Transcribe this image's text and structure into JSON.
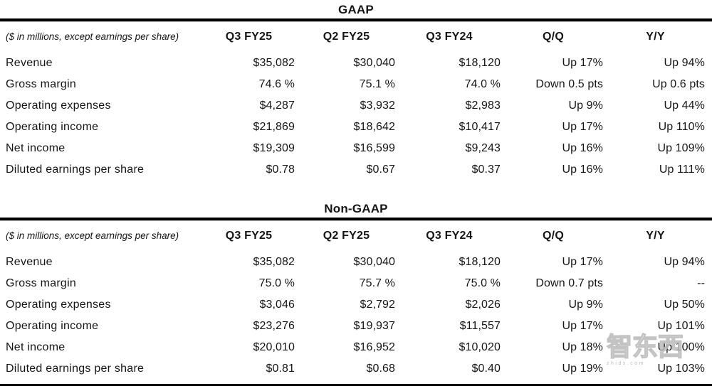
{
  "page": {
    "background": "#ffffff",
    "text_color": "#161616",
    "rule_color": "#000000"
  },
  "tables": [
    {
      "title": "GAAP",
      "note": "($ in millions, except earnings per share)",
      "columns": [
        "Q3 FY25",
        "Q2 FY25",
        "Q3 FY24",
        "Q/Q",
        "Y/Y"
      ],
      "rows": [
        {
          "label": "Revenue",
          "values": [
            "$35,082",
            "$30,040",
            "$18,120",
            "Up 17%",
            "Up 94%"
          ]
        },
        {
          "label": "Gross margin",
          "values": [
            "74.6 %",
            "75.1 %",
            "74.0 %",
            "Down 0.5 pts",
            "Up 0.6 pts"
          ]
        },
        {
          "label": "Operating expenses",
          "values": [
            "$4,287",
            "$3,932",
            "$2,983",
            "Up 9%",
            "Up 44%"
          ]
        },
        {
          "label": "Operating income",
          "values": [
            "$21,869",
            "$18,642",
            "$10,417",
            "Up 17%",
            "Up 110%"
          ]
        },
        {
          "label": "Net income",
          "values": [
            "$19,309",
            "$16,599",
            "$9,243",
            "Up 16%",
            "Up 109%"
          ]
        },
        {
          "label": "Diluted earnings per share",
          "values": [
            "$0.78",
            "$0.67",
            "$0.37",
            "Up 16%",
            "Up 111%"
          ]
        }
      ]
    },
    {
      "title": "Non-GAAP",
      "note": "($ in millions, except earnings per share)",
      "columns": [
        "Q3 FY25",
        "Q2 FY25",
        "Q3 FY24",
        "Q/Q",
        "Y/Y"
      ],
      "rows": [
        {
          "label": "Revenue",
          "values": [
            "$35,082",
            "$30,040",
            "$18,120",
            "Up 17%",
            "Up 94%"
          ]
        },
        {
          "label": "Gross margin",
          "values": [
            "75.0 %",
            "75.7 %",
            "75.0 %",
            "Down 0.7 pts",
            "--"
          ]
        },
        {
          "label": "Operating expenses",
          "values": [
            "$3,046",
            "$2,792",
            "$2,026",
            "Up 9%",
            "Up 50%"
          ]
        },
        {
          "label": "Operating income",
          "values": [
            "$23,276",
            "$19,937",
            "$11,557",
            "Up 17%",
            "Up 101%"
          ]
        },
        {
          "label": "Net income",
          "values": [
            "$20,010",
            "$16,952",
            "$10,020",
            "Up 18%",
            "Up 100%"
          ]
        },
        {
          "label": "Diluted earnings per share",
          "values": [
            "$0.81",
            "$0.68",
            "$0.40",
            "Up 19%",
            "Up 103%"
          ]
        }
      ]
    }
  ],
  "watermark": {
    "text": "智东西",
    "caption": "zhidx.com",
    "color": "#bcbcbc"
  }
}
